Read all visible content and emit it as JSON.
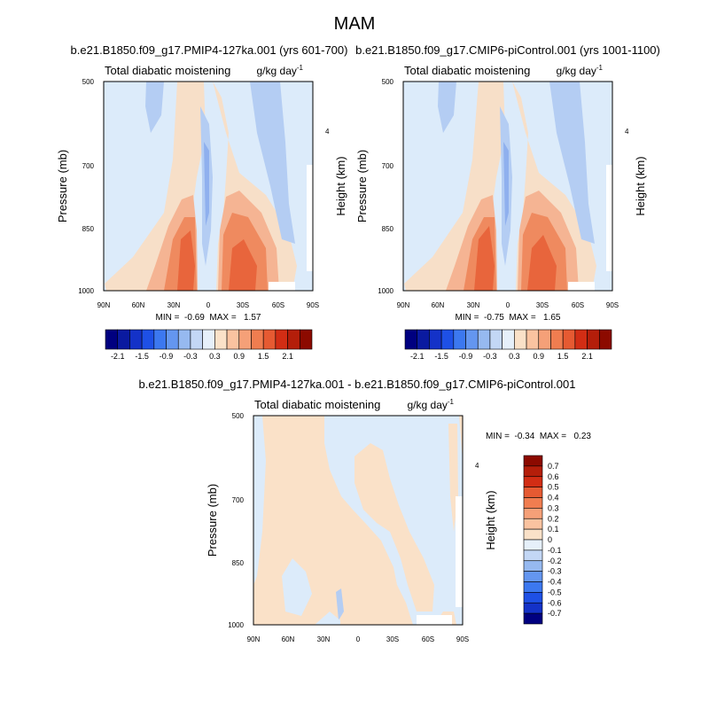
{
  "title": "MAM",
  "panels": [
    {
      "id": "p1",
      "title": "b.e21.B1850.f09_g17.PMIP4-127ka.001 (yrs 601-700)",
      "left_label": "Total diabatic moistening",
      "units_label": "g/kg day",
      "units_exp": "-1",
      "y_label": "Pressure (mb)",
      "y_right_label": "Height (km)",
      "stats": "MIN =  -0.69  MAX =   1.57"
    },
    {
      "id": "p2",
      "title": "b.e21.B1850.f09_g17.CMIP6-piControl.001 (yrs 1001-1100)",
      "left_label": "Total diabatic moistening",
      "units_label": "g/kg day",
      "units_exp": "-1",
      "y_label": "Pressure (mb)",
      "y_right_label": "Height (km)",
      "stats": "MIN =  -0.75  MAX =   1.65"
    },
    {
      "id": "p3",
      "title": "b.e21.B1850.f09_g17.PMIP4-127ka.001 - b.e21.B1850.f09_g17.CMIP6-piControl.001",
      "left_label": "Total diabatic moistening",
      "units_label": "g/kg day",
      "units_exp": "-1",
      "y_label": "Pressure (mb)",
      "y_right_label": "Height (km)",
      "stats": "MIN =  -0.34  MAX =   0.23"
    }
  ],
  "shared_axes": {
    "x_ticks": [
      "90N",
      "60N",
      "30N",
      "0",
      "30S",
      "60S",
      "90S"
    ],
    "y_ticks": [
      "500",
      "700",
      "850",
      "1000"
    ],
    "y_right_ticks": [
      "4"
    ]
  },
  "colorbar_top": {
    "labels": [
      "-2.1",
      "-1.5",
      "-0.9",
      "-0.3",
      "0.3",
      "0.9",
      "1.5",
      "2.1"
    ],
    "colors": [
      "#000080",
      "#0a1aa0",
      "#1432c8",
      "#1e50e6",
      "#3c78f0",
      "#6496f0",
      "#96b9f0",
      "#c3d7f5",
      "#e6f0fa",
      "#fae1c8",
      "#fac3a0",
      "#f5a078",
      "#f07d50",
      "#e65a32",
      "#d22d14",
      "#b41e0a",
      "#8c0a00"
    ]
  },
  "colorbar_diff": {
    "labels": [
      "0.7",
      "0.6",
      "0.5",
      "0.4",
      "0.3",
      "0.2",
      "0.1",
      "0",
      "-0.1",
      "-0.2",
      "-0.3",
      "-0.4",
      "-0.5",
      "-0.6",
      "-0.7"
    ],
    "colors": [
      "#8c0a00",
      "#b41e0a",
      "#d22d14",
      "#e65a32",
      "#f07d50",
      "#f5a078",
      "#fac3a0",
      "#fae1c8",
      "#e6f0fa",
      "#c3d7f5",
      "#96b9f0",
      "#6496f0",
      "#3c78f0",
      "#1e50e6",
      "#1432c8",
      "#000080"
    ]
  },
  "chart_data": [
    {
      "type": "heatmap",
      "title": "b.e21.B1850.f09_g17.PMIP4-127ka.001 (yrs 601-700)",
      "quantity": "Total diabatic moistening",
      "units": "g/kg day-1",
      "xlabel": "",
      "ylabel": "Pressure (mb)",
      "x_ticks": [
        "90N",
        "60N",
        "30N",
        "0",
        "30S",
        "60S",
        "90S"
      ],
      "y_ticks": [
        500,
        700,
        850,
        1000
      ],
      "contour_levels": [
        -2.1,
        -1.8,
        -1.5,
        -1.2,
        -0.9,
        -0.6,
        -0.3,
        0,
        0.3,
        0.6,
        0.9,
        1.2,
        1.5,
        1.8,
        2.1
      ],
      "min": -0.69,
      "max": 1.57
    },
    {
      "type": "heatmap",
      "title": "b.e21.B1850.f09_g17.CMIP6-piControl.001 (yrs 1001-1100)",
      "quantity": "Total diabatic moistening",
      "units": "g/kg day-1",
      "xlabel": "",
      "ylabel": "Pressure (mb)",
      "x_ticks": [
        "90N",
        "60N",
        "30N",
        "0",
        "30S",
        "60S",
        "90S"
      ],
      "y_ticks": [
        500,
        700,
        850,
        1000
      ],
      "contour_levels": [
        -2.1,
        -1.8,
        -1.5,
        -1.2,
        -0.9,
        -0.6,
        -0.3,
        0,
        0.3,
        0.6,
        0.9,
        1.2,
        1.5,
        1.8,
        2.1
      ],
      "min": -0.75,
      "max": 1.65
    },
    {
      "type": "heatmap",
      "title": "b.e21.B1850.f09_g17.PMIP4-127ka.001 - b.e21.B1850.f09_g17.CMIP6-piControl.001",
      "quantity": "Total diabatic moistening",
      "units": "g/kg day-1",
      "xlabel": "",
      "ylabel": "Pressure (mb)",
      "x_ticks": [
        "90N",
        "60N",
        "30N",
        "0",
        "30S",
        "60S",
        "90S"
      ],
      "y_ticks": [
        500,
        700,
        850,
        1000
      ],
      "contour_levels": [
        -0.7,
        -0.6,
        -0.5,
        -0.4,
        -0.3,
        -0.2,
        -0.1,
        0,
        0.1,
        0.2,
        0.3,
        0.4,
        0.5,
        0.6,
        0.7
      ],
      "min": -0.34,
      "max": 0.23
    }
  ]
}
